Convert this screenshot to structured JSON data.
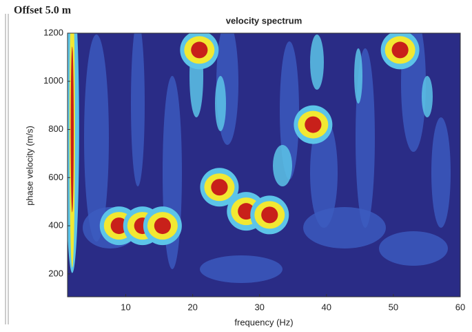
{
  "label": "Offset 5.0 m",
  "chart_data": {
    "type": "heatmap",
    "title": "velocity spectrum",
    "x_label": "frequency (Hz)",
    "y_label": "phase velocity (m/s)",
    "xlim": [
      1.3,
      60
    ],
    "ylim": [
      105,
      1200
    ],
    "xticks": [
      10,
      20,
      30,
      40,
      50,
      60
    ],
    "yticks": [
      200,
      400,
      600,
      800,
      1000,
      1200
    ],
    "peaks": {
      "frequency": [
        9,
        12.5,
        15.5,
        24,
        28,
        31.5,
        38,
        51,
        21,
        2
      ],
      "velocity": [
        400,
        400,
        400,
        560,
        460,
        445,
        820,
        1130,
        1130,
        800
      ]
    },
    "colors": {
      "background": "#2a2c86",
      "low": "#3c5cc0",
      "mid": "#5cc4e8",
      "high": "#f2e832",
      "peak": "#c8201a"
    }
  }
}
